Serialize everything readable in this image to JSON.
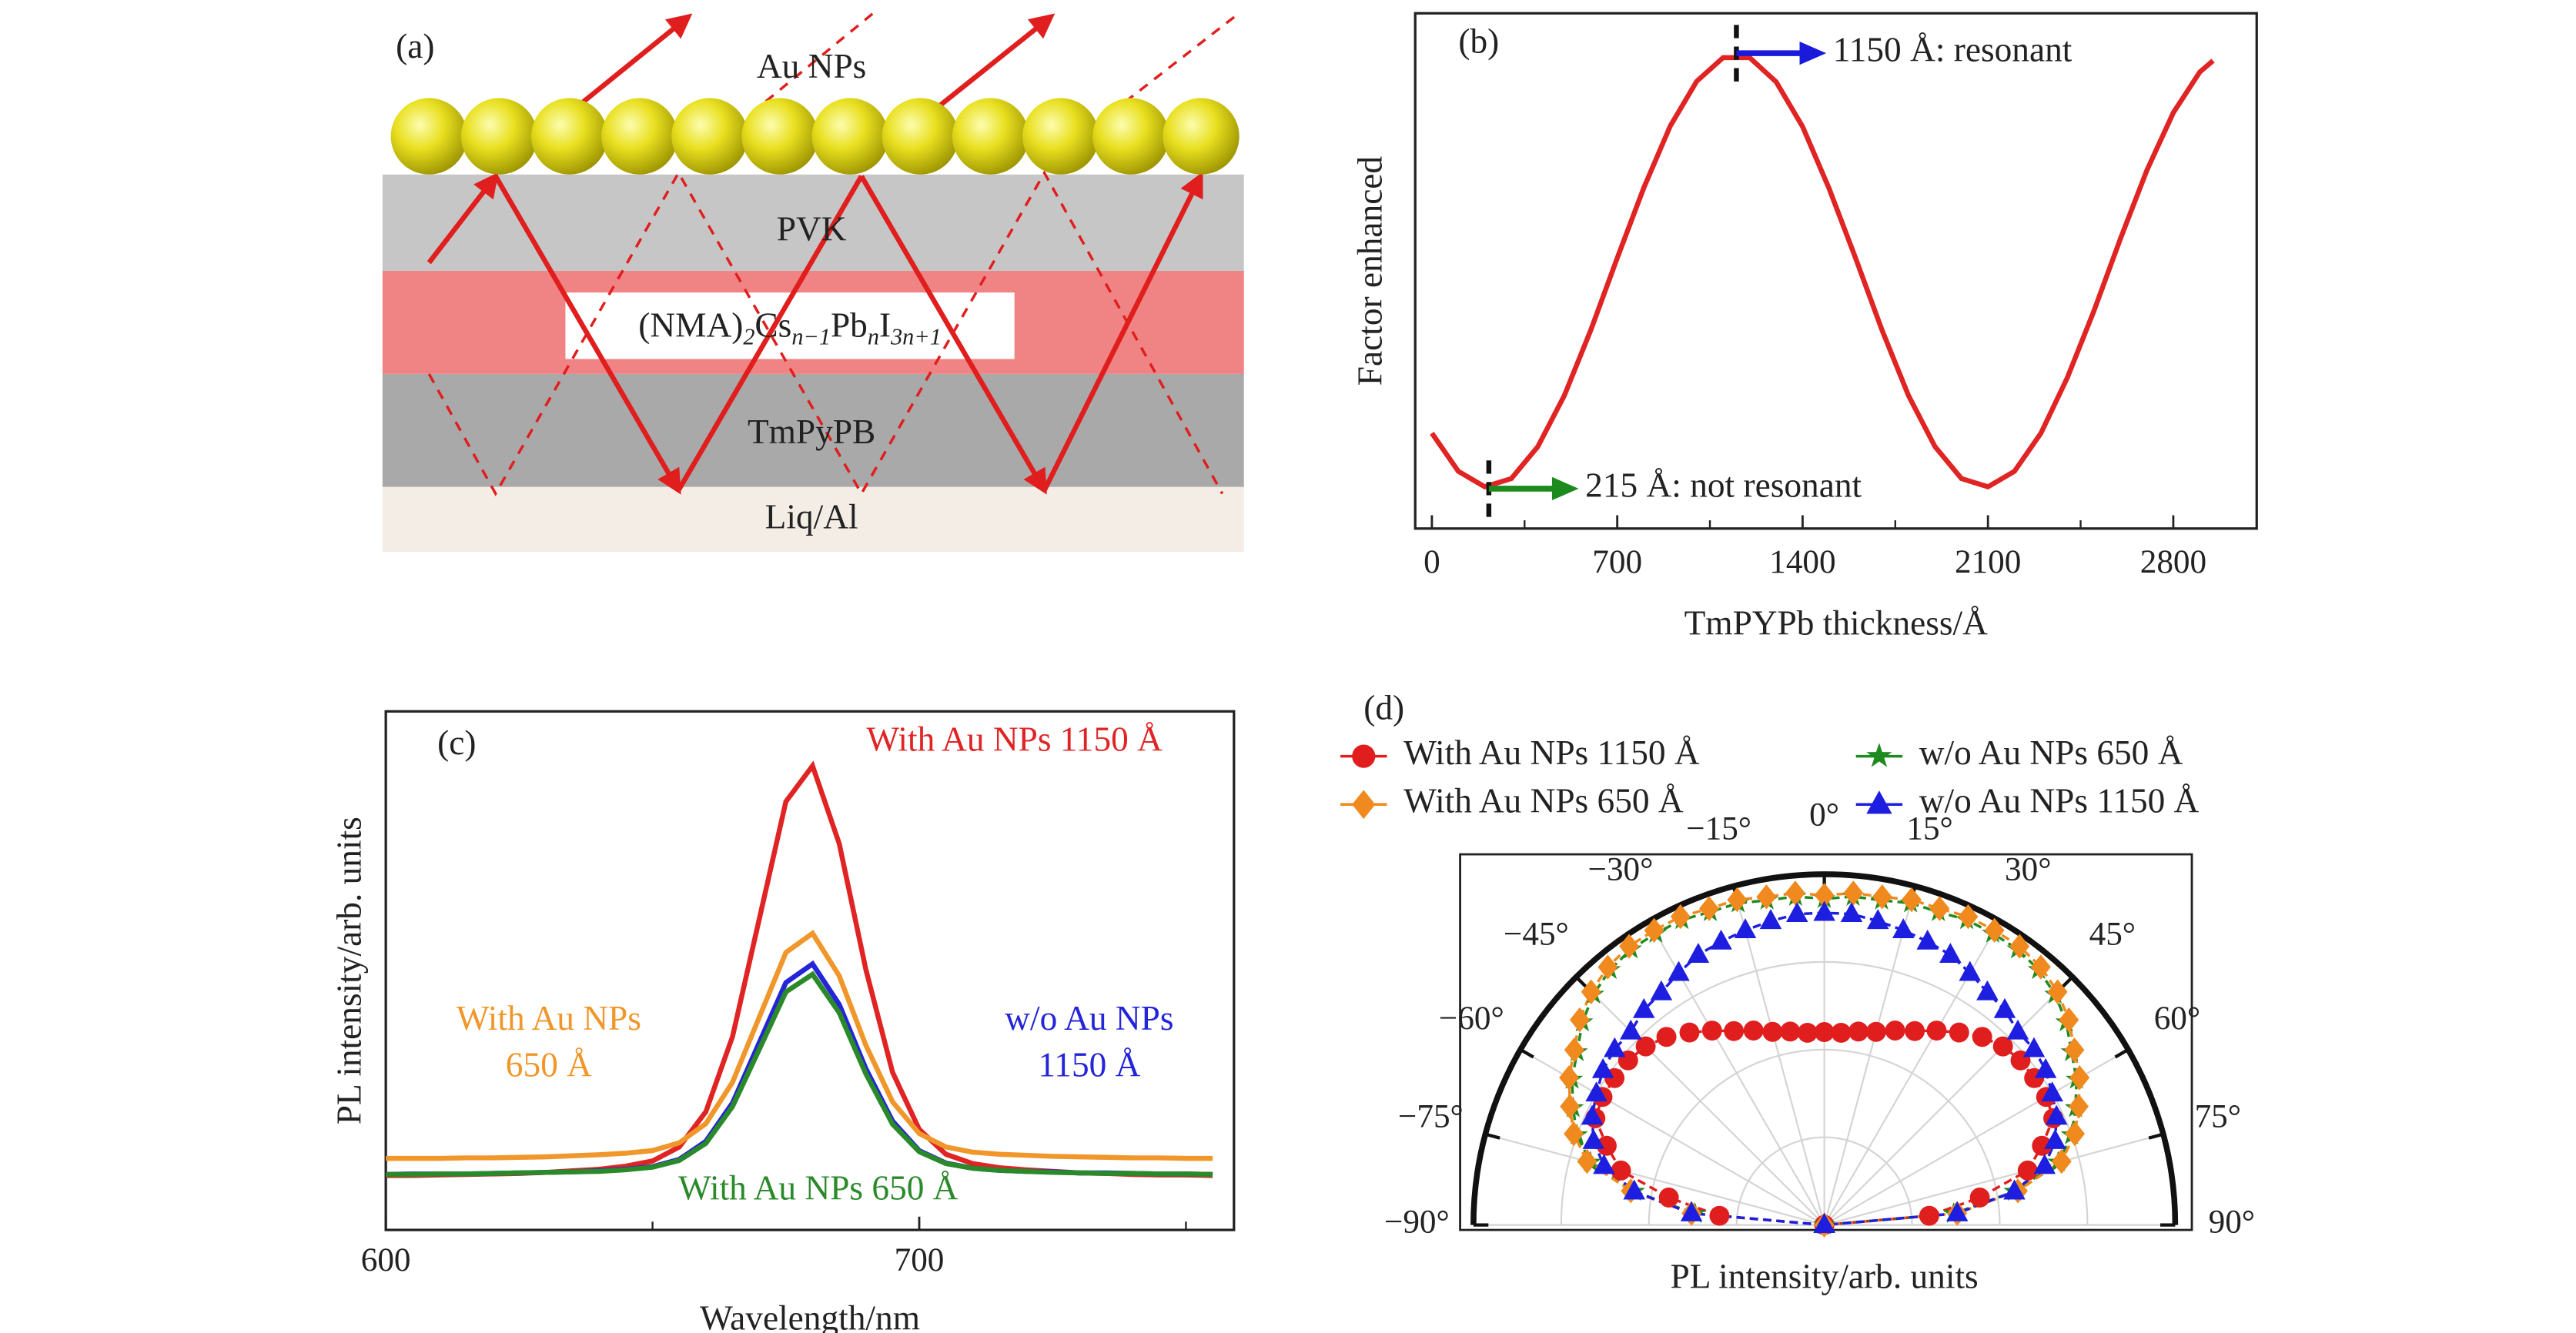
{
  "panel_a": {
    "label": "(a)",
    "layers": {
      "top": "Au NPs",
      "pvk": "PVK",
      "htl": "TmPyPB",
      "cathode": "Liq/Al"
    },
    "formula": [
      {
        "t": "(NMA)"
      },
      {
        "sub": "2"
      },
      {
        "t": "Cs"
      },
      {
        "sub": "n−1"
      },
      {
        "t": "Pb"
      },
      {
        "sub": "n"
      },
      {
        "t": "I"
      },
      {
        "sub": "3n+1"
      }
    ]
  },
  "chart_data": [
    {
      "type": "line",
      "label": "(b)",
      "xlabel": "TmPYPb thickness/Å",
      "ylabel": "Factor enhanced",
      "x": [
        0,
        100,
        200,
        300,
        400,
        500,
        600,
        700,
        800,
        900,
        1000,
        1100,
        1200,
        1300,
        1400,
        1500,
        1600,
        1700,
        1800,
        1900,
        2000,
        2100,
        2200,
        2300,
        2400,
        2500,
        2600,
        2700,
        2800,
        2900,
        2950
      ],
      "series": [
        {
          "color": "#e02424",
          "values": [
            0.185,
            0.111,
            0.081,
            0.097,
            0.159,
            0.258,
            0.385,
            0.525,
            0.661,
            0.781,
            0.868,
            0.914,
            0.914,
            0.867,
            0.78,
            0.66,
            0.525,
            0.385,
            0.258,
            0.159,
            0.097,
            0.081,
            0.111,
            0.185,
            0.293,
            0.422,
            0.562,
            0.695,
            0.807,
            0.886,
            0.908
          ]
        }
      ],
      "xlim": [
        -63,
        3115
      ],
      "ylim": [
        0,
        1
      ],
      "xticks": [
        0,
        700,
        1400,
        2100,
        2800
      ],
      "minor_xticks": [
        350,
        1050,
        1750,
        2450
      ],
      "annotations": [
        {
          "text": "1150 Å: resonant",
          "x": 1150,
          "color": "#1a1adb"
        },
        {
          "text": "215 Å: not resonant",
          "x": 215,
          "color": "#1c8a1c"
        }
      ]
    },
    {
      "type": "line",
      "label": "(c)",
      "xlabel": "Wavelength/nm",
      "ylabel": "PL intensity/arb. units",
      "x": [
        600,
        605,
        610,
        615,
        620,
        625,
        630,
        635,
        640,
        645,
        650,
        655,
        660,
        665,
        670,
        675,
        680,
        685,
        690,
        695,
        700,
        705,
        710,
        715,
        720,
        725,
        730,
        735,
        740,
        745,
        750,
        755
      ],
      "series": [
        {
          "label": [
            "With Au NPs 1150 Å"
          ],
          "color": "#e02424",
          "values": [
            0.105,
            0.105,
            0.106,
            0.107,
            0.108,
            0.109,
            0.111,
            0.114,
            0.117,
            0.123,
            0.133,
            0.16,
            0.228,
            0.373,
            0.599,
            0.826,
            0.895,
            0.745,
            0.502,
            0.304,
            0.194,
            0.146,
            0.128,
            0.12,
            0.116,
            0.113,
            0.11,
            0.109,
            0.107,
            0.106,
            0.106,
            0.105
          ]
        },
        {
          "label": [
            "With Au NPs",
            "650 Å"
          ],
          "color": "#f0962a",
          "values": [
            0.138,
            0.138,
            0.138,
            0.139,
            0.139,
            0.14,
            0.141,
            0.143,
            0.145,
            0.148,
            0.153,
            0.168,
            0.205,
            0.285,
            0.41,
            0.535,
            0.572,
            0.49,
            0.356,
            0.247,
            0.186,
            0.16,
            0.15,
            0.146,
            0.144,
            0.142,
            0.141,
            0.14,
            0.139,
            0.139,
            0.138,
            0.138
          ]
        },
        {
          "label": [
            "w/o Au NPs",
            "1150 Å"
          ],
          "color": "#2424d8",
          "values": [
            0.107,
            0.108,
            0.108,
            0.108,
            0.109,
            0.11,
            0.111,
            0.112,
            0.114,
            0.117,
            0.122,
            0.136,
            0.171,
            0.245,
            0.361,
            0.477,
            0.513,
            0.435,
            0.311,
            0.21,
            0.153,
            0.129,
            0.119,
            0.115,
            0.113,
            0.112,
            0.11,
            0.11,
            0.109,
            0.108,
            0.108,
            0.107
          ]
        },
        {
          "label": [
            "With Au NPs 650 Å"
          ],
          "color": "#2a8a2a",
          "values": [
            0.107,
            0.107,
            0.108,
            0.108,
            0.109,
            0.11,
            0.111,
            0.112,
            0.113,
            0.116,
            0.121,
            0.134,
            0.167,
            0.238,
            0.348,
            0.459,
            0.493,
            0.419,
            0.301,
            0.204,
            0.151,
            0.128,
            0.119,
            0.115,
            0.113,
            0.111,
            0.11,
            0.109,
            0.109,
            0.108,
            0.108,
            0.107
          ]
        }
      ],
      "xlim": [
        600,
        759
      ],
      "ylim": [
        0,
        1
      ],
      "xticks": [
        600,
        700
      ],
      "minor_xticks": [
        650,
        750
      ]
    },
    {
      "type": "polar",
      "label": "(d)",
      "rlabel": "PL intensity/arb. units",
      "theta": [
        -90,
        -85,
        -80,
        -75,
        -70,
        -65,
        -60,
        -55,
        -50,
        -45,
        -40,
        -35,
        -30,
        -25,
        -20,
        -15,
        -10,
        -5,
        0,
        5,
        10,
        15,
        20,
        25,
        30,
        35,
        40,
        45,
        50,
        55,
        60,
        65,
        70,
        75,
        80,
        85,
        90
      ],
      "rlim": [
        0,
        1
      ],
      "thetaticks": [
        {
          "value": -90,
          "label": "−90°"
        },
        {
          "value": -75,
          "label": "−75°"
        },
        {
          "value": -60,
          "label": "−60°"
        },
        {
          "value": -45,
          "label": "−45°"
        },
        {
          "value": -30,
          "label": "−30°"
        },
        {
          "value": -15,
          "label": "−15°"
        },
        {
          "value": 0,
          "label": "0°"
        },
        {
          "value": 15,
          "label": "15°"
        },
        {
          "value": 30,
          "label": "30°"
        },
        {
          "value": 45,
          "label": "45°"
        },
        {
          "value": 60,
          "label": "60°"
        },
        {
          "value": 75,
          "label": "75°"
        },
        {
          "value": 90,
          "label": "90°"
        }
      ],
      "series": [
        {
          "name": "With Au NPs 1150 Å",
          "color": "#e01e1e",
          "marker": "circle",
          "values": [
            0,
            0.3,
            0.45,
            0.6,
            0.66,
            0.72,
            0.73,
            0.73,
            0.73,
            0.72,
            0.7,
            0.67,
            0.64,
            0.61,
            0.59,
            0.57,
            0.56,
            0.55,
            0.55,
            0.55,
            0.56,
            0.57,
            0.59,
            0.61,
            0.64,
            0.67,
            0.7,
            0.72,
            0.73,
            0.73,
            0.73,
            0.72,
            0.66,
            0.6,
            0.45,
            0.3,
            0
          ]
        },
        {
          "name": "w/o Au NPs 650 Å",
          "color": "#1f8a1f",
          "marker": "star",
          "values": [
            0,
            0.37,
            0.55,
            0.69,
            0.75,
            0.79,
            0.83,
            0.86,
            0.9,
            0.93,
            0.95,
            0.96,
            0.96,
            0.96,
            0.95,
            0.95,
            0.94,
            0.94,
            0.93,
            0.94,
            0.94,
            0.95,
            0.95,
            0.96,
            0.96,
            0.96,
            0.95,
            0.93,
            0.9,
            0.86,
            0.83,
            0.79,
            0.75,
            0.69,
            0.55,
            0.37,
            0
          ]
        },
        {
          "name": "With Au NPs 650 Å",
          "color": "#f08a1e",
          "marker": "diamond",
          "values": [
            0,
            0.38,
            0.56,
            0.7,
            0.76,
            0.8,
            0.84,
            0.87,
            0.91,
            0.94,
            0.96,
            0.97,
            0.97,
            0.97,
            0.96,
            0.96,
            0.95,
            0.95,
            0.94,
            0.95,
            0.95,
            0.96,
            0.96,
            0.97,
            0.97,
            0.97,
            0.96,
            0.94,
            0.91,
            0.87,
            0.84,
            0.8,
            0.76,
            0.7,
            0.56,
            0.38,
            0
          ]
        },
        {
          "name": "w/o Au NPs 1150 Å",
          "color": "#1e1ee0",
          "marker": "triangle",
          "values": [
            0,
            0.38,
            0.55,
            0.65,
            0.7,
            0.73,
            0.75,
            0.77,
            0.78,
            0.78,
            0.8,
            0.81,
            0.83,
            0.85,
            0.86,
            0.87,
            0.88,
            0.89,
            0.89,
            0.89,
            0.88,
            0.87,
            0.86,
            0.85,
            0.83,
            0.81,
            0.8,
            0.78,
            0.78,
            0.77,
            0.75,
            0.73,
            0.7,
            0.65,
            0.55,
            0.38,
            0
          ]
        }
      ]
    }
  ]
}
